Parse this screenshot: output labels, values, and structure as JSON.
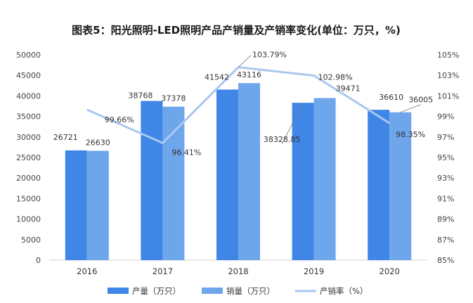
{
  "chart_data": {
    "type": "bar",
    "title": "图表5：阳光照明-LED照明产品产销量及产销率变化(单位：万只，%)",
    "categories": [
      "2016",
      "2017",
      "2018",
      "2019",
      "2020"
    ],
    "series": [
      {
        "name": "产量（万只）",
        "type": "bar",
        "axis": "left",
        "color": "#3f86e6",
        "values": [
          26721,
          38768,
          41542,
          38328.85,
          36610
        ],
        "labels": [
          "26721",
          "38768",
          "41542",
          "38328.85",
          "36610"
        ]
      },
      {
        "name": "销量（万只）",
        "type": "bar",
        "axis": "left",
        "color": "#6ea6ec",
        "values": [
          26630,
          37378,
          43116,
          39471,
          36005
        ],
        "labels": [
          "26630",
          "37378",
          "43116",
          "39471",
          "36005"
        ]
      },
      {
        "name": "产销率（%）",
        "type": "line",
        "axis": "right",
        "color": "#a9c8ef",
        "values": [
          99.66,
          96.41,
          103.79,
          102.98,
          98.35
        ],
        "labels": [
          "99.66%",
          "96.41%",
          "103.79%",
          "102.98%",
          "98.35%"
        ]
      }
    ],
    "y_left": {
      "ylim": [
        0,
        50000
      ],
      "ticks": [
        "0",
        "5000",
        "10000",
        "15000",
        "20000",
        "25000",
        "30000",
        "35000",
        "40000",
        "45000",
        "50000"
      ]
    },
    "y_right": {
      "ylim": [
        85,
        105
      ],
      "ticks": [
        "85%",
        "87%",
        "89%",
        "91%",
        "93%",
        "95%",
        "97%",
        "99%",
        "101%",
        "103%",
        "105%"
      ]
    },
    "grid": false,
    "legend_position": "bottom"
  }
}
